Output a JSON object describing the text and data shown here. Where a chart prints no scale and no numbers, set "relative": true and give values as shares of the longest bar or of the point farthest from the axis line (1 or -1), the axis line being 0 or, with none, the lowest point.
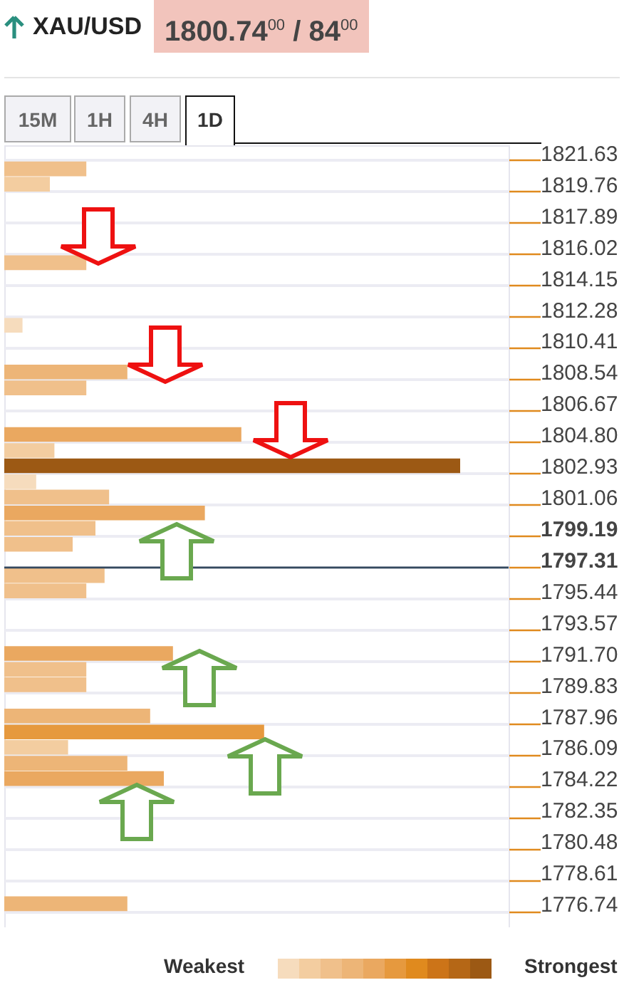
{
  "chart_data": {
    "type": "bar",
    "orientation": "horizontal",
    "relative": true,
    "title": "XAU/USD",
    "subtitle": "1800.74$^{00}$ / 84$^{00}$",
    "annotations": [
      "15M",
      "1H",
      "4H",
      "1D",
      "Weakest",
      "Strongest"
    ],
    "categories": [
      "1821.63",
      "1819.76",
      "1817.89",
      "1816.02",
      "1814.15",
      "1812.28",
      "1810.41",
      "1808.54",
      "1806.67",
      "1804.80",
      "1802.93",
      "1801.06",
      "1799.19",
      "1797.31",
      "1795.44",
      "1793.57",
      "1791.70",
      "1789.83",
      "1787.96",
      "1786.09",
      "1784.22",
      "1782.35",
      "1780.48",
      "1778.61",
      "1776.74"
    ],
    "series": [
      {
        "values": [
          null,
          0.1,
          null,
          null,
          null,
          null,
          null,
          0.27,
          null,
          0.52,
          1,
          0.23,
          0.2,
          null,
          0.18,
          null,
          0.37,
          0.18,
          0.32,
          0.14,
          0.35,
          null,
          null,
          null,
          0.27
        ],
        "colors": [
          null,
          "#f3cda0",
          null,
          null,
          null,
          null,
          null,
          "#edb577",
          null,
          "#eaa860",
          "#9c5914",
          "#f0c08b",
          "#f0c08b",
          null,
          "#f0c08b",
          null,
          "#eaa860",
          "#f0c08b",
          "#edb577",
          "#f3cda0",
          "#eaa860",
          null,
          null,
          null,
          "#edb577"
        ]
      },
      {
        "values": [
          0.18,
          null,
          null,
          0.18,
          null,
          0.04,
          null,
          0.18,
          null,
          0.11,
          0.07,
          0.44,
          0.15,
          0.22,
          null,
          null,
          0.18,
          null,
          0.57,
          0.27,
          null,
          null,
          null,
          null,
          null
        ],
        "colors": [
          "#f0c08b",
          null,
          null,
          "#f0c08b",
          null,
          "#f6dcbd",
          null,
          "#f0c08b",
          null,
          "#f3cda0",
          "#f6dcbd",
          "#eaa860",
          "#f0c08b",
          "#f0c08b",
          null,
          null,
          "#f0c08b",
          null,
          "#e6993e",
          "#edb577",
          null,
          null,
          null,
          null,
          null
        ]
      }
    ],
    "ref_lines": [
      {
        "axis": "y",
        "value": "1797.31",
        "color": "#34495e"
      }
    ],
    "grid": true
  }
}
